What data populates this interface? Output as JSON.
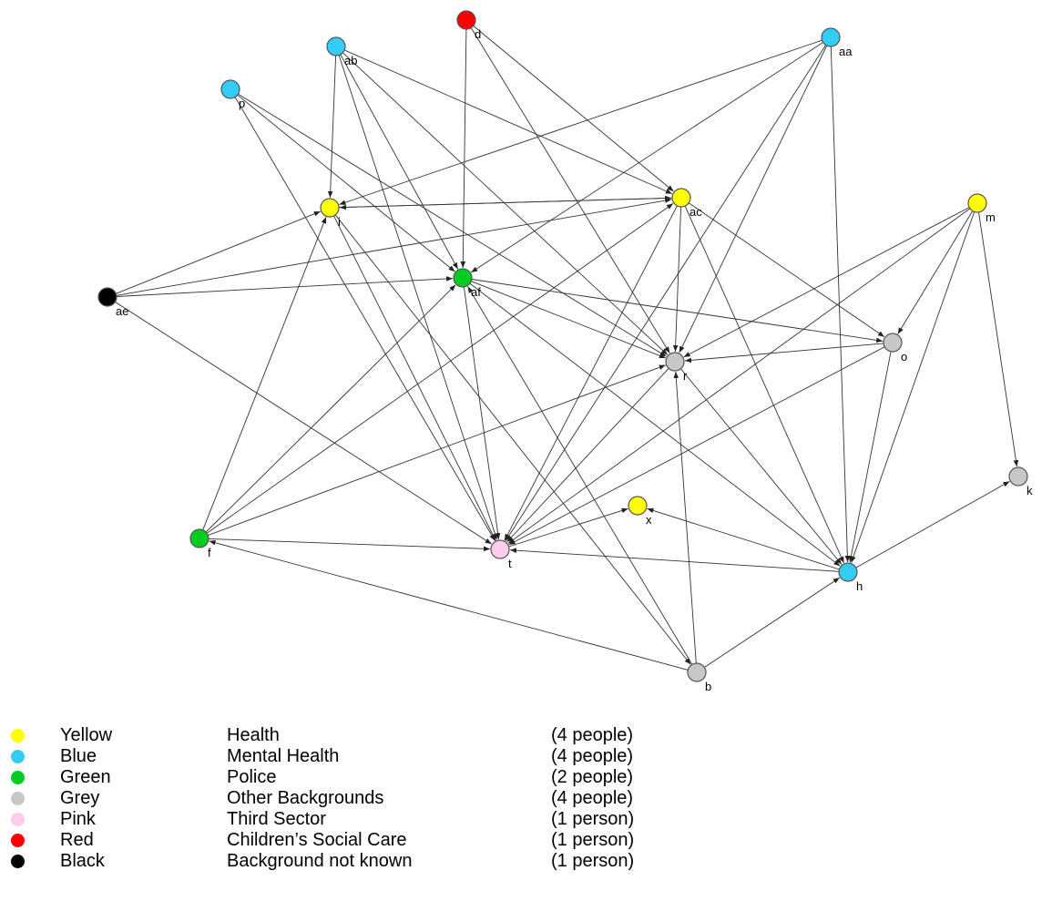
{
  "colors": {
    "yellow": "#ffff00",
    "blue": "#33ccf5",
    "green": "#00cc22",
    "grey": "#c8c8c8",
    "pink": "#ffccee",
    "red": "#ff0000",
    "black": "#000000",
    "edge": "#333333"
  },
  "nodes": [
    {
      "id": "d",
      "group": "red"
    },
    {
      "id": "ab",
      "group": "blue"
    },
    {
      "id": "aa",
      "group": "blue"
    },
    {
      "id": "p",
      "group": "blue"
    },
    {
      "id": "i",
      "group": "yellow"
    },
    {
      "id": "ac",
      "group": "yellow"
    },
    {
      "id": "m",
      "group": "yellow"
    },
    {
      "id": "af",
      "group": "green"
    },
    {
      "id": "ae",
      "group": "black"
    },
    {
      "id": "r",
      "group": "grey"
    },
    {
      "id": "o",
      "group": "grey"
    },
    {
      "id": "k",
      "group": "grey"
    },
    {
      "id": "x",
      "group": "yellow"
    },
    {
      "id": "f",
      "group": "green"
    },
    {
      "id": "t",
      "group": "pink"
    },
    {
      "id": "h",
      "group": "blue"
    },
    {
      "id": "b",
      "group": "grey"
    }
  ],
  "edges": [
    [
      "d",
      "af"
    ],
    [
      "d",
      "ac"
    ],
    [
      "d",
      "r"
    ],
    [
      "ab",
      "i"
    ],
    [
      "ab",
      "af"
    ],
    [
      "ab",
      "ac"
    ],
    [
      "ab",
      "r"
    ],
    [
      "ab",
      "t"
    ],
    [
      "aa",
      "i"
    ],
    [
      "aa",
      "af"
    ],
    [
      "aa",
      "r"
    ],
    [
      "aa",
      "t"
    ],
    [
      "aa",
      "h"
    ],
    [
      "p",
      "r"
    ],
    [
      "p",
      "af"
    ],
    [
      "p",
      "t"
    ],
    [
      "i",
      "ac"
    ],
    [
      "ac",
      "i"
    ],
    [
      "i",
      "t"
    ],
    [
      "i",
      "b"
    ],
    [
      "ac",
      "r"
    ],
    [
      "ac",
      "o"
    ],
    [
      "ac",
      "h"
    ],
    [
      "ac",
      "t"
    ],
    [
      "m",
      "r"
    ],
    [
      "m",
      "o"
    ],
    [
      "m",
      "h"
    ],
    [
      "m",
      "k"
    ],
    [
      "m",
      "t"
    ],
    [
      "af",
      "r"
    ],
    [
      "af",
      "t"
    ],
    [
      "af",
      "o"
    ],
    [
      "af",
      "h"
    ],
    [
      "ae",
      "i"
    ],
    [
      "ae",
      "af"
    ],
    [
      "ae",
      "ac"
    ],
    [
      "ae",
      "t"
    ],
    [
      "o",
      "r"
    ],
    [
      "o",
      "h"
    ],
    [
      "o",
      "t"
    ],
    [
      "r",
      "t"
    ],
    [
      "r",
      "h"
    ],
    [
      "f",
      "i"
    ],
    [
      "f",
      "af"
    ],
    [
      "f",
      "ac"
    ],
    [
      "f",
      "r"
    ],
    [
      "f",
      "t"
    ],
    [
      "t",
      "x"
    ],
    [
      "h",
      "x"
    ],
    [
      "h",
      "t"
    ],
    [
      "h",
      "k"
    ],
    [
      "b",
      "af"
    ],
    [
      "b",
      "r"
    ],
    [
      "b",
      "h"
    ],
    [
      "b",
      "f"
    ]
  ],
  "legend": [
    {
      "group": "yellow",
      "color_name": "Yellow",
      "category": "Health",
      "count": "(4 people)"
    },
    {
      "group": "blue",
      "color_name": "Blue",
      "category": "Mental Health",
      "count": "(4 people)"
    },
    {
      "group": "green",
      "color_name": "Green",
      "category": "Police",
      "count": "(2 people)"
    },
    {
      "group": "grey",
      "color_name": "Grey",
      "category": "Other Backgrounds",
      "count": "(4 people)"
    },
    {
      "group": "pink",
      "color_name": "Pink",
      "category": "Third Sector",
      "count": "(1 person)"
    },
    {
      "group": "red",
      "color_name": "Red",
      "category": "Children’s Social Care",
      "count": "(1 person)"
    },
    {
      "group": "black",
      "color_name": "Black",
      "category": "Background not known",
      "count": "(1 person)"
    }
  ]
}
